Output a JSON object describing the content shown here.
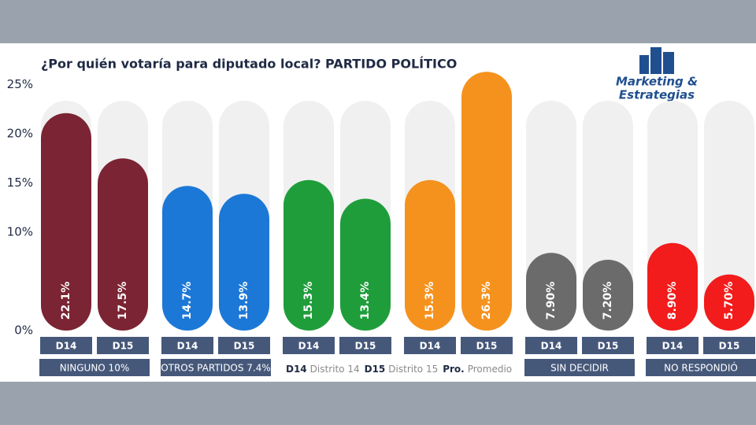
{
  "chart_data": {
    "type": "bar",
    "title": "¿Por quién votaría para diputado local? PARTIDO POLÍTICO",
    "brand": [
      "Marketing &",
      "Estrategias"
    ],
    "ylim": [
      0,
      28
    ],
    "yticks": [
      {
        "value": 0,
        "label": "0%"
      },
      {
        "value": 10,
        "label": "10%"
      },
      {
        "value": 15,
        "label": "15%"
      },
      {
        "value": 20,
        "label": "20%"
      },
      {
        "value": 25,
        "label": "25%"
      }
    ],
    "groups": [
      {
        "name": "NINGUNO 10%",
        "categories": [
          "D14",
          "D15"
        ],
        "values": [
          22.1,
          17.5
        ],
        "value_labels": [
          "22.1%",
          "17.5%"
        ],
        "colors": [
          "#7b2433",
          "#7b2433"
        ]
      },
      {
        "name": "OTROS PARTIDOS 7.4%",
        "categories": [
          "D14",
          "D15"
        ],
        "values": [
          14.7,
          13.9
        ],
        "value_labels": [
          "14.7%",
          "13.9%"
        ],
        "colors": [
          "#1c78d6",
          "#1c78d6"
        ]
      },
      {
        "categories": [
          "D14",
          "D15"
        ],
        "values": [
          15.3,
          13.4
        ],
        "value_labels": [
          "15.3%",
          "13.4%"
        ],
        "colors": [
          "#1f9d3a",
          "#1f9d3a"
        ]
      },
      {
        "categories": [
          "D14",
          "D15"
        ],
        "values": [
          15.3,
          26.3
        ],
        "value_labels": [
          "15.3%",
          "26.3%"
        ],
        "colors": [
          "#f5921e",
          "#f5921e"
        ]
      },
      {
        "name": "SIN DECIDIR",
        "categories": [
          "D14",
          "D15"
        ],
        "values": [
          7.9,
          7.2
        ],
        "value_labels": [
          "7.90%",
          "7.20%"
        ],
        "colors": [
          "#6b6b6b",
          "#6b6b6b"
        ]
      },
      {
        "name": "NO RESPONDIÓ",
        "categories": [
          "D14",
          "D15"
        ],
        "values": [
          8.9,
          5.7
        ],
        "value_labels": [
          "8.90%",
          "5.70%"
        ],
        "colors": [
          "#f21c1c",
          "#f21c1c"
        ]
      }
    ],
    "legend": [
      {
        "key": "D14",
        "text": "Distrito 14"
      },
      {
        "key": "D15",
        "text": "Distrito 15"
      },
      {
        "key": "Pro.",
        "text": "Promedio"
      }
    ]
  }
}
